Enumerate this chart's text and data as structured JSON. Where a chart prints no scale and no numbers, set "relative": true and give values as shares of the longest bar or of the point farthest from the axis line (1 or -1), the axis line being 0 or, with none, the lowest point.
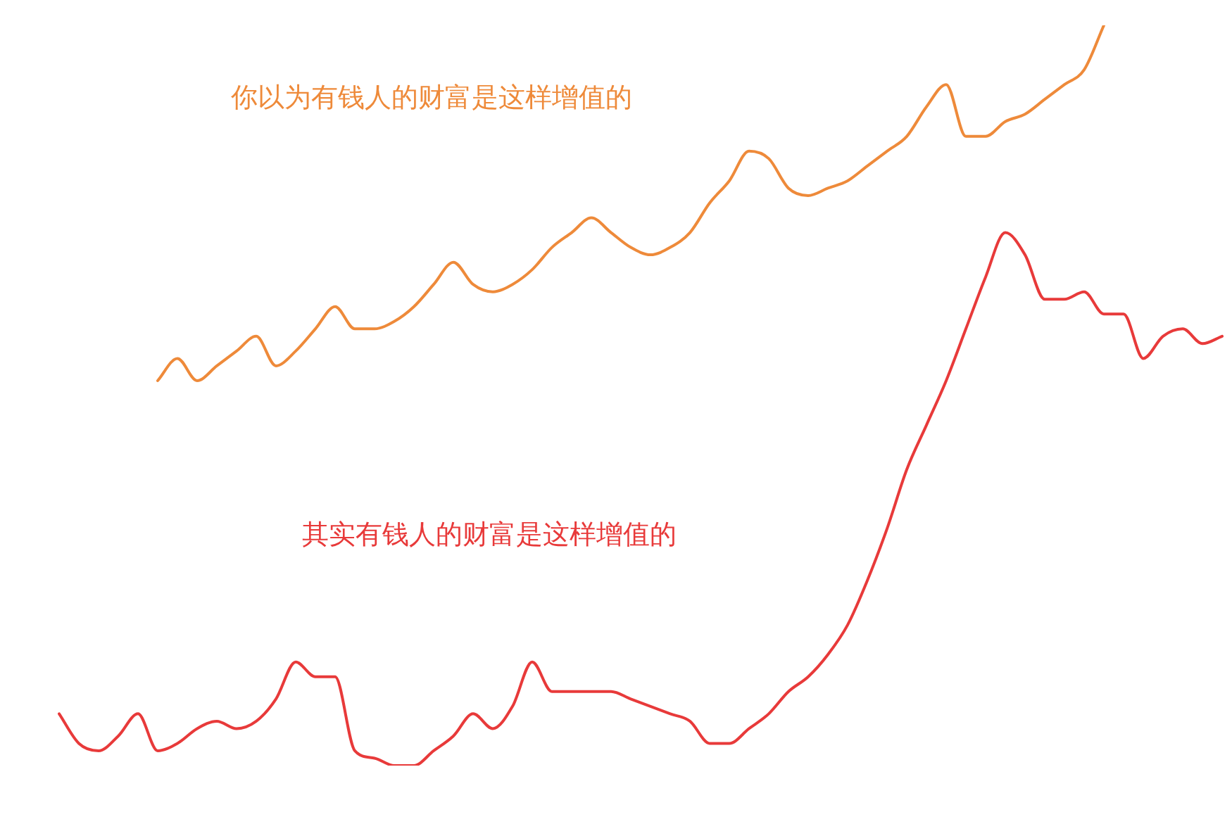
{
  "chart_data": {
    "type": "line",
    "relative": true,
    "legend": false,
    "marker": "none",
    "line_style": "solid",
    "categories": [
      null,
      null,
      null,
      null,
      null,
      null,
      null,
      null,
      null,
      null,
      null,
      null,
      null,
      null,
      null,
      null,
      null,
      null,
      null,
      null,
      null,
      null,
      null,
      null,
      null,
      null,
      null,
      null,
      null,
      null,
      null,
      null,
      null,
      null,
      null,
      null,
      null,
      null,
      null,
      null,
      null,
      null,
      null,
      null,
      null,
      null,
      null,
      null,
      null,
      null,
      null,
      null,
      null,
      null,
      null,
      null,
      null,
      null,
      null,
      null
    ],
    "series": [
      {
        "name": "你以为有钱人的财富是这样增值的",
        "color": "#ee8a3a",
        "values": [
          null,
          null,
          null,
          null,
          null,
          0.52,
          0.55,
          0.52,
          0.54,
          0.56,
          0.58,
          0.54,
          0.56,
          0.59,
          0.62,
          0.59,
          0.59,
          0.6,
          0.62,
          0.65,
          0.68,
          0.65,
          0.64,
          0.65,
          0.67,
          0.7,
          0.72,
          0.74,
          0.72,
          0.7,
          0.69,
          0.7,
          0.72,
          0.76,
          0.79,
          0.83,
          0.82,
          0.78,
          0.77,
          0.78,
          0.79,
          0.81,
          0.83,
          0.85,
          0.89,
          0.92,
          0.85,
          0.85,
          0.87,
          0.88,
          0.9,
          0.92,
          0.94,
          1,
          null,
          null,
          null,
          null,
          null,
          null
        ]
      },
      {
        "name": "其实有钱人的财富是这样增值的",
        "color": "#e83a3a",
        "values": [
          0.07,
          0.03,
          0.02,
          0.04,
          0.07,
          0.02,
          0.03,
          0.05,
          0.06,
          0.05,
          0.06,
          0.09,
          0.14,
          0.12,
          0.12,
          0.02,
          0.01,
          0,
          0,
          0.02,
          0.04,
          0.07,
          0.05,
          0.08,
          0.14,
          0.1,
          0.1,
          0.1,
          0.1,
          0.09,
          0.08,
          0.07,
          0.06,
          0.03,
          0.03,
          0.05,
          0.07,
          0.1,
          0.12,
          0.15,
          0.19,
          0.25,
          0.32,
          0.4,
          0.46,
          0.52,
          0.59,
          0.66,
          0.72,
          0.69,
          0.63,
          0.63,
          0.64,
          0.61,
          0.61,
          0.55,
          0.58,
          0.59,
          0.57,
          0.58
        ]
      }
    ]
  }
}
